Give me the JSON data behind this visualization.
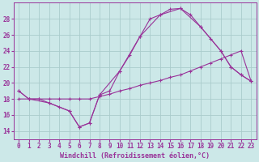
{
  "xlabel": "Windchill (Refroidissement éolien,°C)",
  "bg_color": "#cce8e8",
  "grid_color": "#aacccc",
  "line_color": "#993399",
  "xlim": [
    -0.5,
    23.5
  ],
  "ylim": [
    13.0,
    30.0
  ],
  "yticks": [
    14,
    16,
    18,
    20,
    22,
    24,
    26,
    28
  ],
  "xticks": [
    0,
    1,
    2,
    3,
    4,
    5,
    6,
    7,
    8,
    9,
    10,
    11,
    12,
    13,
    14,
    15,
    16,
    17,
    18,
    19,
    20,
    21,
    22,
    23
  ],
  "line1_x": [
    0,
    1,
    2,
    3,
    4,
    5,
    6,
    7,
    8,
    9,
    10,
    11,
    12,
    13,
    14,
    15,
    16,
    17,
    18,
    19,
    20,
    21,
    22,
    23
  ],
  "line1_y": [
    19.0,
    18.0,
    18.0,
    17.5,
    17.0,
    16.5,
    14.5,
    15.0,
    18.5,
    19.0,
    21.5,
    23.5,
    25.8,
    28.0,
    28.5,
    29.2,
    29.3,
    28.5,
    27.0,
    25.5,
    24.0,
    22.0,
    21.0,
    20.2
  ],
  "line2_x": [
    0,
    1,
    2,
    3,
    4,
    5,
    6,
    7,
    8,
    9,
    10,
    11,
    12,
    13,
    14,
    15,
    16,
    17,
    18,
    19,
    20,
    21,
    22,
    23
  ],
  "line2_y": [
    18.0,
    18.0,
    18.0,
    18.0,
    18.0,
    18.0,
    18.0,
    18.0,
    18.3,
    18.6,
    19.0,
    19.3,
    19.7,
    20.0,
    20.3,
    20.7,
    21.0,
    21.5,
    22.0,
    22.5,
    23.0,
    23.5,
    24.0,
    20.2
  ],
  "line3_x": [
    0,
    1,
    3,
    5,
    6,
    7,
    8,
    10,
    12,
    14,
    16,
    18,
    20,
    21,
    22,
    23
  ],
  "line3_y": [
    19.0,
    18.0,
    17.5,
    16.5,
    14.5,
    15.0,
    18.5,
    21.5,
    25.8,
    28.5,
    29.3,
    27.0,
    24.0,
    22.0,
    21.0,
    20.2
  ]
}
